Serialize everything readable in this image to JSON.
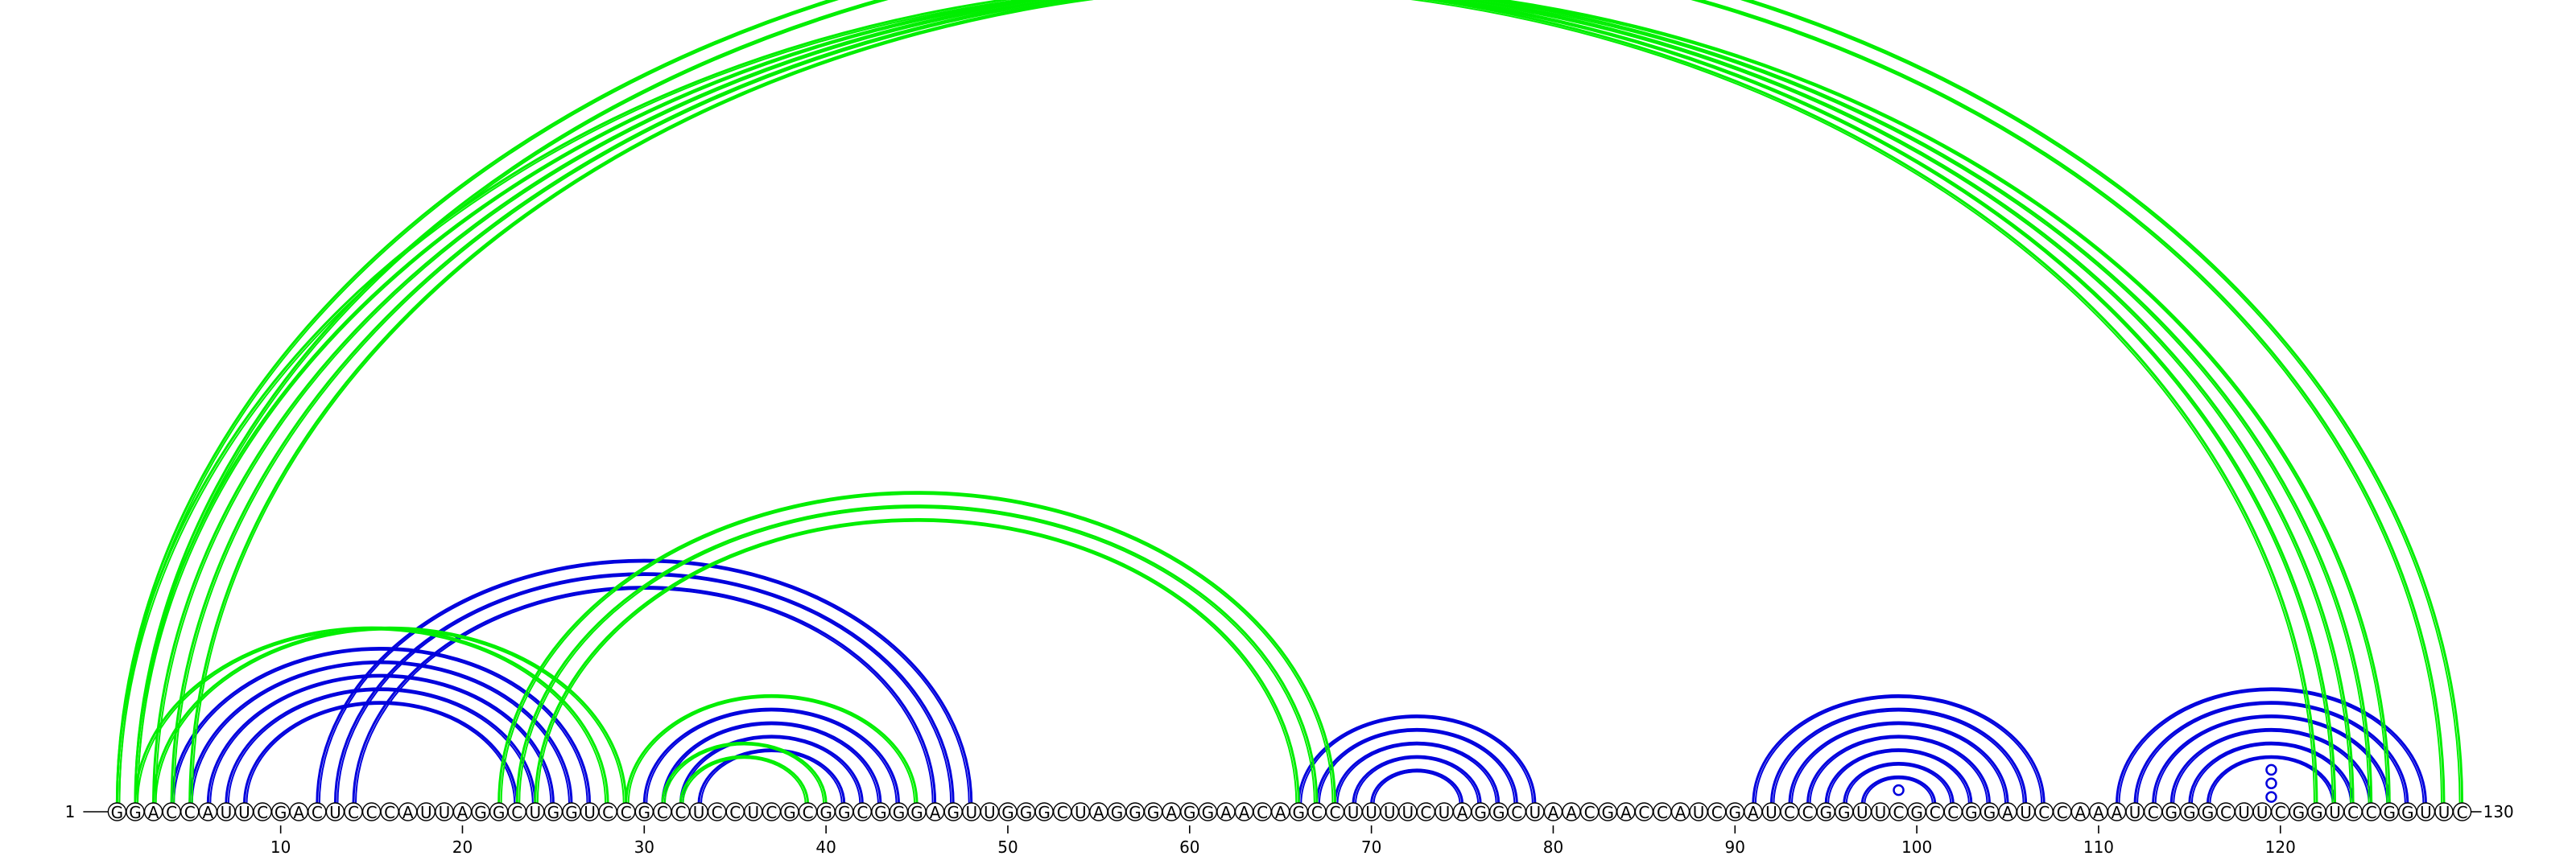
{
  "diagram": {
    "type": "rna-arc-diagram",
    "sequence": "GGACCAUUCGACUCCCAUUAGGCUGGUCCGCCUCCUCGCGGCGGGAGUUGGGCUAGGGAGGAACAGCCUUUUCUAGGCUAACGACCAUCGAUCCGGUUCGCCGGAUCCAAAUCGGGCUUCGGUCCGGUUC",
    "start_label": "1",
    "end_label": "130",
    "tick_labels": [
      "10",
      "20",
      "30",
      "40",
      "50",
      "60",
      "70",
      "80",
      "90",
      "100",
      "110",
      "120"
    ],
    "tick_positions": [
      10,
      20,
      30,
      40,
      50,
      60,
      70,
      80,
      90,
      100,
      110,
      120
    ],
    "colors": {
      "blue": "#0000dd",
      "green": "#00ee00",
      "text": "#000000"
    },
    "arc_groups": [
      {
        "color": "blue",
        "pairs": [
          [
            4,
            27
          ],
          [
            5,
            26
          ],
          [
            6,
            25
          ],
          [
            7,
            24
          ],
          [
            8,
            23
          ]
        ]
      },
      {
        "color": "blue",
        "pairs": [
          [
            12,
            48
          ],
          [
            13,
            47
          ],
          [
            14,
            46
          ]
        ]
      },
      {
        "color": "blue",
        "pairs": [
          [
            30,
            44
          ],
          [
            31,
            43
          ],
          [
            32,
            42
          ],
          [
            33,
            41
          ]
        ]
      },
      {
        "color": "blue",
        "pairs": [
          [
            66,
            79
          ],
          [
            67,
            78
          ],
          [
            68,
            77
          ],
          [
            69,
            76
          ],
          [
            70,
            75
          ]
        ]
      },
      {
        "color": "blue",
        "pairs": [
          [
            91,
            107
          ],
          [
            92,
            106
          ],
          [
            93,
            105
          ],
          [
            94,
            104
          ],
          [
            95,
            103
          ],
          [
            96,
            102
          ],
          [
            97,
            101
          ]
        ]
      },
      {
        "color": "blue",
        "pairs": [
          [
            111,
            128
          ],
          [
            112,
            127
          ],
          [
            113,
            126
          ],
          [
            114,
            125
          ],
          [
            115,
            124
          ],
          [
            116,
            123
          ]
        ]
      },
      {
        "color": "green",
        "pairs": [
          [
            1,
            122
          ],
          [
            2,
            123
          ],
          [
            3,
            124
          ],
          [
            4,
            125
          ],
          [
            5,
            126
          ]
        ]
      },
      {
        "color": "green",
        "pairs": [
          [
            1,
            130
          ],
          [
            2,
            129
          ]
        ]
      },
      {
        "color": "green",
        "pairs": [
          [
            2,
            28
          ],
          [
            3,
            29
          ]
        ]
      },
      {
        "color": "green",
        "pairs": [
          [
            22,
            68
          ],
          [
            23,
            67
          ],
          [
            24,
            66
          ]
        ]
      },
      {
        "color": "green",
        "pairs": [
          [
            29,
            45
          ],
          [
            31,
            40
          ],
          [
            32,
            39
          ]
        ]
      }
    ],
    "markers": [
      {
        "color": "green",
        "at": 65.5,
        "over_pair": [
          1,
          130
        ]
      },
      {
        "color": "blue",
        "at": 99,
        "over_pair": [
          98,
          100
        ]
      },
      {
        "color": "blue",
        "at": 119.5,
        "over_pair": [
          117,
          122
        ]
      },
      {
        "color": "blue",
        "at": 119.5,
        "over_pair": [
          118,
          121
        ]
      },
      {
        "color": "blue",
        "at": 119.5,
        "over_pair": [
          119,
          120
        ]
      }
    ]
  }
}
